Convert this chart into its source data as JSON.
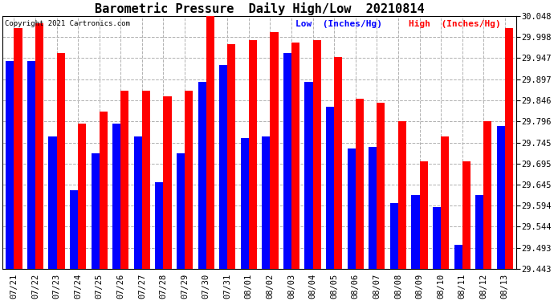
{
  "title": "Barometric Pressure  Daily High/Low  20210814",
  "copyright": "Copyright 2021 Cartronics.com",
  "legend_low": "Low  (Inches/Hg)",
  "legend_high": "High  (Inches/Hg)",
  "ylim_min": 29.443,
  "ylim_max": 30.048,
  "yticks": [
    29.443,
    29.493,
    29.544,
    29.594,
    29.645,
    29.695,
    29.745,
    29.796,
    29.846,
    29.897,
    29.947,
    29.998,
    30.048
  ],
  "dates": [
    "07/21",
    "07/22",
    "07/23",
    "07/24",
    "07/25",
    "07/26",
    "07/27",
    "07/28",
    "07/29",
    "07/30",
    "07/31",
    "08/01",
    "08/02",
    "08/03",
    "08/04",
    "08/05",
    "08/06",
    "08/07",
    "08/08",
    "08/09",
    "08/10",
    "08/11",
    "08/12",
    "08/13"
  ],
  "high_values": [
    30.02,
    30.03,
    29.96,
    29.79,
    29.82,
    29.87,
    29.87,
    29.855,
    29.87,
    30.05,
    29.98,
    29.99,
    30.01,
    29.985,
    29.99,
    29.95,
    29.85,
    29.84,
    29.796,
    29.7,
    29.76,
    29.7,
    29.796,
    30.02
  ],
  "low_values": [
    29.94,
    29.94,
    29.76,
    29.63,
    29.72,
    29.79,
    29.76,
    29.65,
    29.72,
    29.89,
    29.93,
    29.755,
    29.76,
    29.96,
    29.89,
    29.83,
    29.73,
    29.735,
    29.6,
    29.62,
    29.59,
    29.5,
    29.62,
    29.785
  ],
  "high_color": "#ff0000",
  "low_color": "#0000ff",
  "bg_color": "#ffffff",
  "grid_color": "#b0b0b0",
  "bar_width": 0.38,
  "title_fontsize": 11,
  "tick_fontsize": 7.5,
  "copyright_fontsize": 6.5,
  "legend_fontsize": 8
}
